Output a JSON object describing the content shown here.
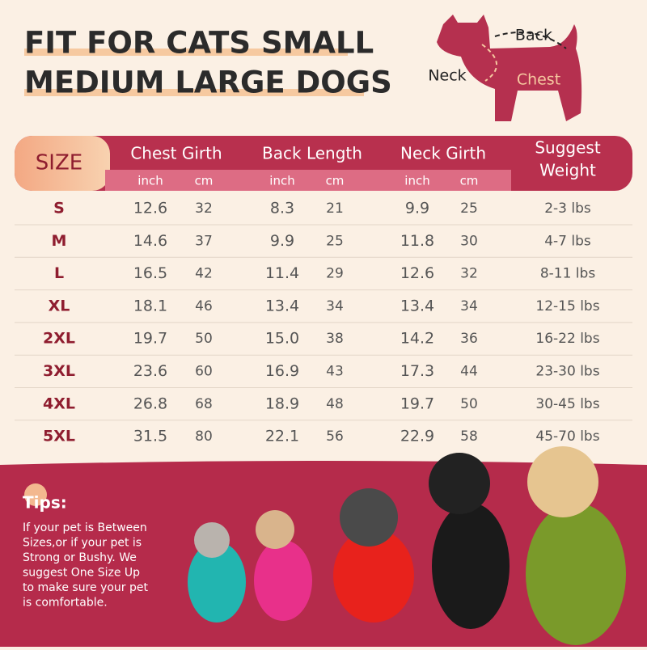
{
  "header": {
    "title": [
      "FIT FOR CATS SMALL",
      "MEDIUM LARGE DOGS"
    ]
  },
  "diagram": {
    "labels": [
      "Back",
      "Neck",
      "Chest"
    ]
  },
  "table": {
    "size_header": "SIZE",
    "columns": [
      {
        "name": "Chest Girth",
        "units": [
          "inch",
          "cm"
        ]
      },
      {
        "name": "Back Length",
        "units": [
          "inch",
          "cm"
        ]
      },
      {
        "name": "Neck Girth",
        "units": [
          "inch",
          "cm"
        ]
      },
      {
        "name": [
          "Suggest",
          "Weight"
        ]
      }
    ],
    "rows": [
      [
        "S",
        "12.6",
        "32",
        "8.3",
        "21",
        "9.9",
        "25",
        "2-3 lbs"
      ],
      [
        "M",
        "14.6",
        "37",
        "9.9",
        "25",
        "11.8",
        "30",
        "4-7 lbs"
      ],
      [
        "L",
        "16.5",
        "42",
        "11.4",
        "29",
        "12.6",
        "32",
        "8-11 lbs"
      ],
      [
        "XL",
        "18.1",
        "46",
        "13.4",
        "34",
        "13.4",
        "34",
        "12-15 lbs"
      ],
      [
        "2XL",
        "19.7",
        "50",
        "15.0",
        "38",
        "14.2",
        "36",
        "16-22 lbs"
      ],
      [
        "3XL",
        "23.6",
        "60",
        "16.9",
        "43",
        "17.3",
        "44",
        "23-30 lbs"
      ],
      [
        "4XL",
        "26.8",
        "68",
        "18.9",
        "48",
        "19.7",
        "50",
        "30-45 lbs"
      ],
      [
        "5XL",
        "31.5",
        "80",
        "22.1",
        "56",
        "22.9",
        "58",
        "45-70 lbs"
      ]
    ]
  },
  "tips": {
    "title": "Tips:",
    "lines": [
      "If your pet is Between",
      "Sizes,or if your pet is",
      "Strong or Bushy. We",
      "suggest One Size Up",
      "to make sure your pet",
      "is comfortable."
    ]
  }
}
